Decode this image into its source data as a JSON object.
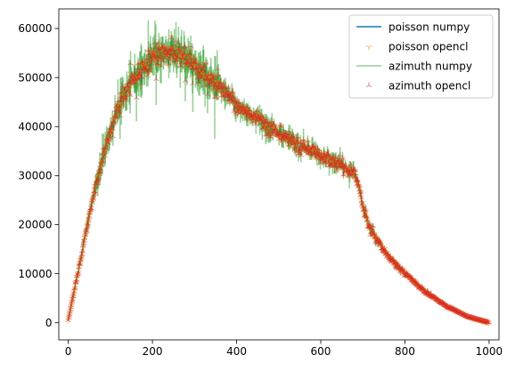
{
  "chart_data": {
    "type": "scatter",
    "title": "",
    "xlabel": "",
    "ylabel": "",
    "xlim": [
      -22.5,
      1023.5
    ],
    "ylim": [
      -3500,
      64000
    ],
    "xticks": [
      0,
      200,
      400,
      600,
      800,
      1000
    ],
    "xtick_labels": [
      "0",
      "200",
      "400",
      "600",
      "800",
      "1000"
    ],
    "yticks": [
      0,
      10000,
      20000,
      30000,
      40000,
      50000,
      60000
    ],
    "ytick_labels": [
      "0",
      "10000",
      "20000",
      "30000",
      "40000",
      "50000",
      "60000"
    ],
    "grid": false,
    "legend_position": "upper right",
    "n_points": 1000,
    "x_range": [
      0,
      999
    ],
    "noise_relative": 0.04,
    "envelope": {
      "x": [
        0,
        15,
        30,
        50,
        70,
        90,
        110,
        130,
        150,
        170,
        200,
        230,
        260,
        300,
        350,
        400,
        450,
        500,
        550,
        600,
        650,
        680,
        690,
        700,
        710,
        720,
        740,
        760,
        800,
        850,
        900,
        950,
        1000
      ],
      "y": [
        500,
        7000,
        13000,
        22000,
        29500,
        36000,
        42000,
        46000,
        49500,
        51500,
        54000,
        55000,
        54500,
        52500,
        48500,
        44500,
        41500,
        38500,
        36000,
        34000,
        32000,
        30500,
        28000,
        24000,
        21000,
        19000,
        16000,
        13500,
        10000,
        6200,
        3300,
        1200,
        0
      ]
    },
    "series": [
      {
        "name": "poisson numpy",
        "kind": "line",
        "color": "#1f77b4"
      },
      {
        "name": "poisson opencl",
        "kind": "marker-tri_down",
        "color": "#ff7f0e"
      },
      {
        "name": "azimuth numpy",
        "kind": "errorbar",
        "color": "#2ca02c"
      },
      {
        "name": "azimuth opencl",
        "kind": "marker-tri_up",
        "color": "#d62728"
      }
    ]
  }
}
